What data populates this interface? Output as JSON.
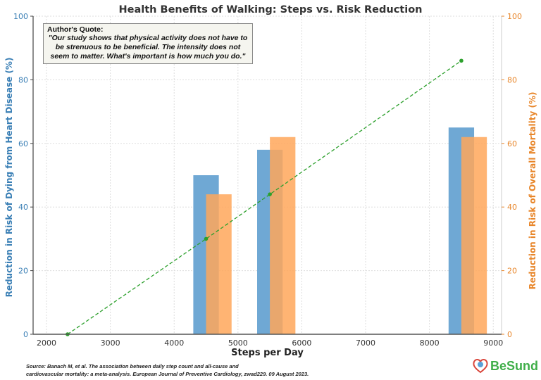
{
  "chart_data": {
    "type": "bar",
    "title": "Health Benefits of Walking: Steps vs. Risk Reduction",
    "xlabel": "Steps per Day",
    "ylabel_left": "Reduction in Risk of Dying from Heart Disease (%)",
    "ylabel_right": "Reduction in Risk of Overall Mortality (%)",
    "xlim": [
      1790,
      9130
    ],
    "ylim": [
      0,
      100
    ],
    "x_ticks": [
      2000,
      3000,
      4000,
      5000,
      6000,
      7000,
      8000,
      9000
    ],
    "y_ticks": [
      0,
      20,
      40,
      60,
      80,
      100
    ],
    "grid": true,
    "bar_width": 400,
    "series": [
      {
        "axis": "left",
        "type": "bar",
        "color": "#6fa8d4",
        "x": [
          4500,
          5500,
          8500
        ],
        "values": [
          50,
          58,
          65
        ]
      },
      {
        "axis": "right",
        "type": "bar",
        "color": "#ffa75a",
        "x": [
          4700,
          5700,
          8700
        ],
        "values": [
          44,
          62,
          62
        ]
      },
      {
        "axis": "left",
        "type": "line",
        "style": "dashed",
        "color": "#2ca02c",
        "x": [
          2330,
          4500,
          5500,
          8500
        ],
        "values": [
          0,
          30,
          44,
          86
        ]
      }
    ],
    "left_axis_color": "#3a7fb5",
    "right_axis_color": "#e8862a"
  },
  "quote": {
    "heading": "Author's Quote:",
    "text": "\"Our study shows that physical activity does not have to be strenuous to be beneficial. The intensity does not seem to matter. What's important is how much you do.\""
  },
  "source": {
    "line1": "Source: Banach M, et al. The association between daily step count and all-cause and",
    "line2": "cardiovascular mortality: a meta-analysis. European Journal of Preventive Cardiology, zwad229. 09 August 2023."
  },
  "logo": {
    "text": "BeSund",
    "icon": "heart-logo-icon"
  }
}
